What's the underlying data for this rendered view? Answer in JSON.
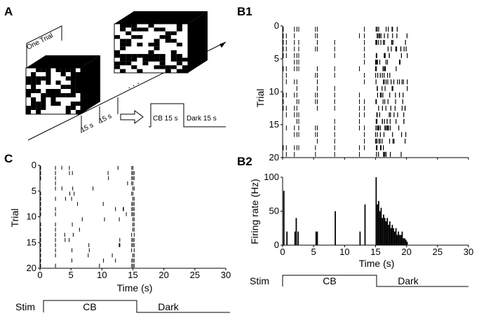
{
  "figure": {
    "panel_labels": {
      "a": "A",
      "b1": "B1",
      "b2": "B2",
      "c": "C"
    }
  },
  "panel_a": {
    "one_trial_label": "One Trial",
    "duration_label_1": "15 s",
    "duration_label_2": "15 s",
    "schematic_cb_label": "CB 15 s",
    "schematic_dark_label": "Dark 15 s",
    "ellipsis": ". . .",
    "arrow_icon": "right-arrow-icon"
  },
  "stim_labels": {
    "stim": "Stim",
    "cb": "CB",
    "dark": "Dark"
  },
  "chart_data": [
    {
      "id": "B1",
      "type": "raster",
      "xlim": [
        0,
        30
      ],
      "ylim": [
        0,
        20
      ],
      "y_ticks": [
        0,
        5,
        10,
        15,
        20
      ],
      "ylabel": "Trial",
      "xlabel": "",
      "y_inverted": true,
      "trials": 20,
      "sparse_columns_s": [
        0.1,
        0.6,
        1.9,
        2.3,
        2.6,
        5.3,
        5.6,
        8.4,
        12.4,
        13.2
      ],
      "dense_window_s": [
        15.0,
        20.2
      ]
    },
    {
      "id": "B2",
      "type": "histogram",
      "xlim": [
        0,
        30
      ],
      "ylim": [
        0,
        100
      ],
      "x_ticks": [
        0,
        5,
        10,
        15,
        20,
        25,
        30
      ],
      "y_ticks": [
        0,
        50,
        100
      ],
      "xlabel": "Time (s)",
      "ylabel": "Firing rate (Hz)",
      "bins": [
        {
          "t": 0.1,
          "v": 80
        },
        {
          "t": 0.6,
          "v": 20
        },
        {
          "t": 1.9,
          "v": 20
        },
        {
          "t": 2.1,
          "v": 40
        },
        {
          "t": 2.4,
          "v": 20
        },
        {
          "t": 5.3,
          "v": 20
        },
        {
          "t": 5.5,
          "v": 20
        },
        {
          "t": 8.4,
          "v": 50
        },
        {
          "t": 12.4,
          "v": 20
        },
        {
          "t": 13.2,
          "v": 60
        },
        {
          "t": 15.0,
          "v": 100
        },
        {
          "t": 15.2,
          "v": 60
        },
        {
          "t": 15.4,
          "v": 65
        },
        {
          "t": 15.6,
          "v": 50
        },
        {
          "t": 15.8,
          "v": 55
        },
        {
          "t": 16.0,
          "v": 40
        },
        {
          "t": 16.2,
          "v": 45
        },
        {
          "t": 16.4,
          "v": 40
        },
        {
          "t": 16.6,
          "v": 35
        },
        {
          "t": 16.8,
          "v": 40
        },
        {
          "t": 17.0,
          "v": 30
        },
        {
          "t": 17.2,
          "v": 35
        },
        {
          "t": 17.4,
          "v": 25
        },
        {
          "t": 17.6,
          "v": 30
        },
        {
          "t": 17.8,
          "v": 25
        },
        {
          "t": 18.0,
          "v": 20
        },
        {
          "t": 18.2,
          "v": 25
        },
        {
          "t": 18.4,
          "v": 15
        },
        {
          "t": 18.6,
          "v": 20
        },
        {
          "t": 18.8,
          "v": 15
        },
        {
          "t": 19.0,
          "v": 15
        },
        {
          "t": 19.2,
          "v": 20
        },
        {
          "t": 19.4,
          "v": 10
        },
        {
          "t": 19.6,
          "v": 10
        },
        {
          "t": 19.8,
          "v": 8
        },
        {
          "t": 20.0,
          "v": 5
        }
      ]
    },
    {
      "id": "C",
      "type": "raster",
      "xlim": [
        0,
        30
      ],
      "ylim": [
        0,
        20
      ],
      "x_ticks": [
        0,
        5,
        10,
        15,
        20,
        25,
        30
      ],
      "y_ticks": [
        0,
        5,
        10,
        15,
        20
      ],
      "xlabel": "Time (s)",
      "ylabel": "Trial",
      "y_inverted": true,
      "trials": 20,
      "column_s": [
        0.0,
        0.1,
        2.5
      ],
      "scattered_window_s": [
        3.0,
        14.5
      ],
      "end_cluster_s": [
        14.8,
        15.0,
        15.2
      ]
    }
  ]
}
